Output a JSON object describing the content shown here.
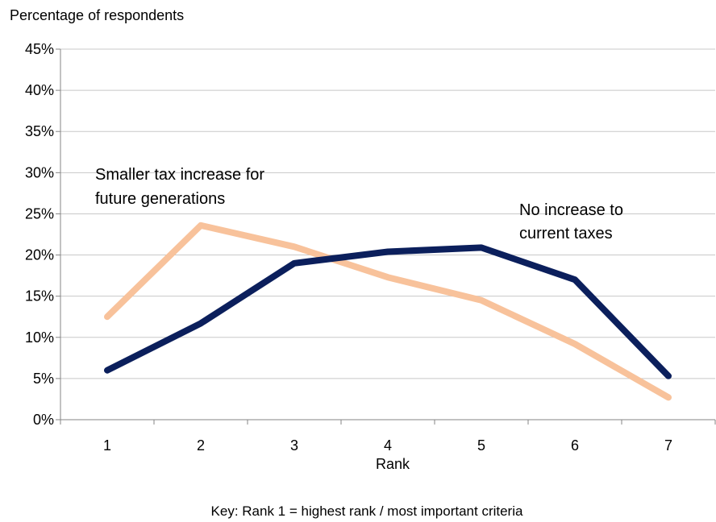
{
  "chart_data": {
    "type": "line",
    "ylabel": "Percentage of respondents",
    "xlabel": "Rank",
    "categories": [
      "1",
      "2",
      "3",
      "4",
      "5",
      "6",
      "7"
    ],
    "ylim": [
      0,
      45
    ],
    "yticks": [
      "0%",
      "5%",
      "10%",
      "15%",
      "20%",
      "25%",
      "30%",
      "35%",
      "40%",
      "45%"
    ],
    "grid": true,
    "series": [
      {
        "name": "No increase to current taxes",
        "color": "#0b1f5c",
        "values": [
          6.0,
          11.7,
          19.0,
          20.4,
          20.9,
          17.0,
          5.3
        ]
      },
      {
        "name": "Smaller tax increase for future generations",
        "color": "#f8c29b",
        "values": [
          12.5,
          23.6,
          21.0,
          17.3,
          14.5,
          9.2,
          2.7
        ]
      }
    ],
    "annotations": [
      {
        "lines": [
          "Smaller tax increase for",
          "future generations"
        ]
      },
      {
        "lines": [
          "No increase to",
          "current taxes"
        ]
      }
    ],
    "key": "Key: Rank 1 = highest rank / most important criteria"
  }
}
